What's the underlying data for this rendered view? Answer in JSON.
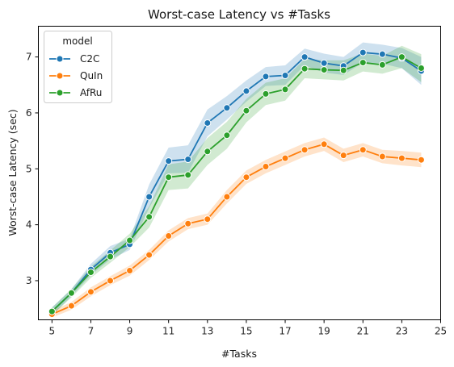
{
  "chart_data": {
    "type": "line",
    "title": "Worst-case Latency vs #Tasks",
    "xlabel": "#Tasks",
    "ylabel": "Worst-case Latency (sec)",
    "xlim": [
      4.3,
      25
    ],
    "ylim": [
      2.3,
      7.55
    ],
    "xticks": [
      5,
      7,
      9,
      11,
      13,
      15,
      17,
      19,
      21,
      23,
      25
    ],
    "yticks": [
      3,
      4,
      5,
      6,
      7
    ],
    "legend": {
      "title": "model",
      "placement": "upper-left"
    },
    "x": [
      5,
      6,
      7,
      8,
      9,
      10,
      11,
      12,
      13,
      14,
      15,
      16,
      17,
      18,
      19,
      20,
      21,
      22,
      23,
      24
    ],
    "series": [
      {
        "name": "C2C",
        "color": "#1f77b4",
        "values": [
          2.45,
          2.78,
          3.2,
          3.5,
          3.65,
          4.5,
          5.14,
          5.17,
          5.82,
          6.09,
          6.39,
          6.65,
          6.67,
          7.0,
          6.89,
          6.84,
          7.08,
          7.05,
          6.98,
          6.75
        ],
        "ci_low": [
          2.38,
          2.72,
          3.1,
          3.38,
          3.55,
          4.3,
          4.92,
          4.93,
          5.58,
          5.88,
          6.2,
          6.48,
          6.5,
          6.85,
          6.72,
          6.68,
          6.9,
          6.88,
          6.8,
          6.5
        ],
        "ci_high": [
          2.52,
          2.85,
          3.3,
          3.62,
          3.75,
          4.72,
          5.38,
          5.42,
          6.06,
          6.3,
          6.58,
          6.82,
          6.85,
          7.15,
          7.06,
          7.0,
          7.26,
          7.22,
          7.16,
          7.0
        ]
      },
      {
        "name": "QuIn",
        "color": "#ff7f0e",
        "values": [
          2.4,
          2.55,
          2.8,
          3.0,
          3.18,
          3.46,
          3.8,
          4.02,
          4.1,
          4.5,
          4.85,
          5.04,
          5.19,
          5.34,
          5.44,
          5.24,
          5.34,
          5.22,
          5.19,
          5.16
        ],
        "ci_low": [
          2.34,
          2.48,
          2.72,
          2.92,
          3.09,
          3.37,
          3.7,
          3.92,
          4.0,
          4.38,
          4.73,
          4.92,
          5.07,
          5.22,
          5.32,
          5.12,
          5.22,
          5.1,
          5.06,
          5.03
        ],
        "ci_high": [
          2.46,
          2.62,
          2.88,
          3.08,
          3.27,
          3.55,
          3.9,
          4.12,
          4.2,
          4.62,
          4.97,
          5.16,
          5.31,
          5.46,
          5.56,
          5.36,
          5.46,
          5.34,
          5.32,
          5.29
        ]
      },
      {
        "name": "AfRu",
        "color": "#2ca02c",
        "values": [
          2.45,
          2.78,
          3.15,
          3.43,
          3.72,
          4.14,
          4.85,
          4.89,
          5.31,
          5.6,
          6.04,
          6.34,
          6.42,
          6.79,
          6.77,
          6.76,
          6.9,
          6.86,
          7.0,
          6.8
        ],
        "ci_low": [
          2.38,
          2.7,
          3.05,
          3.32,
          3.6,
          3.95,
          4.62,
          4.65,
          5.07,
          5.36,
          5.83,
          6.14,
          6.22,
          6.62,
          6.6,
          6.58,
          6.74,
          6.7,
          6.8,
          6.55
        ],
        "ci_high": [
          2.52,
          2.85,
          3.25,
          3.54,
          3.84,
          4.33,
          5.08,
          5.13,
          5.55,
          5.84,
          6.25,
          6.54,
          6.62,
          6.96,
          6.94,
          6.94,
          7.06,
          7.02,
          7.2,
          7.05
        ]
      }
    ]
  }
}
